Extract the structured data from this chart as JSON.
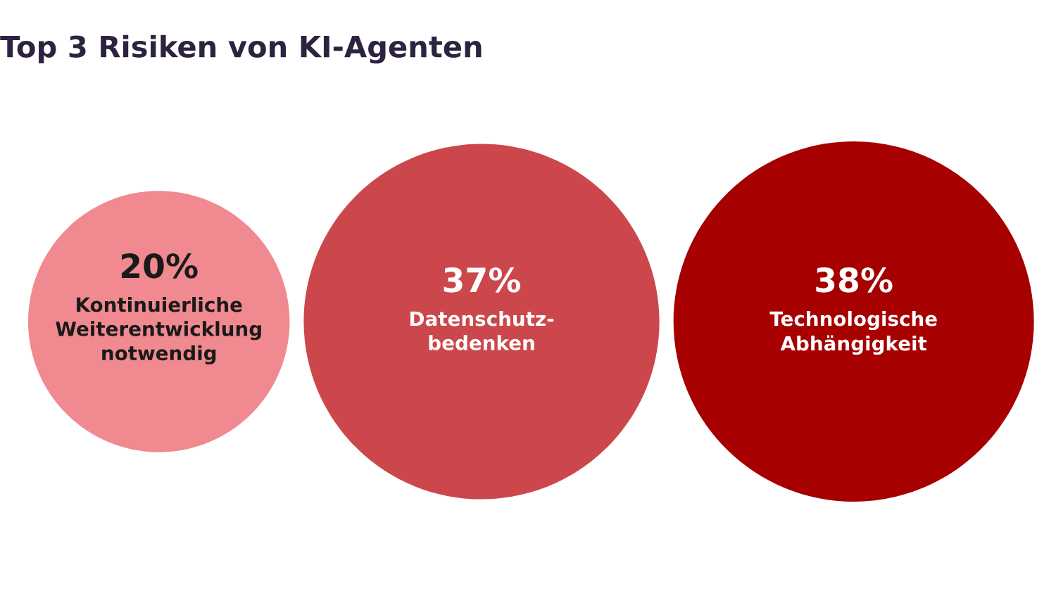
{
  "chart_data": {
    "type": "other",
    "title": "Top 3 Risiken von KI-Agenten",
    "categories": [
      "Kontinuierliche\nWeiterentwicklung\nnotwendig",
      "Datenschutz-\nbedenken",
      "Technologische\nAbhängigkeit"
    ],
    "values": [
      20,
      37,
      38
    ],
    "value_labels": [
      "20%",
      "37%",
      "38%"
    ],
    "colors": [
      "#f08a90",
      "#cc474b",
      "#a60000"
    ]
  }
}
